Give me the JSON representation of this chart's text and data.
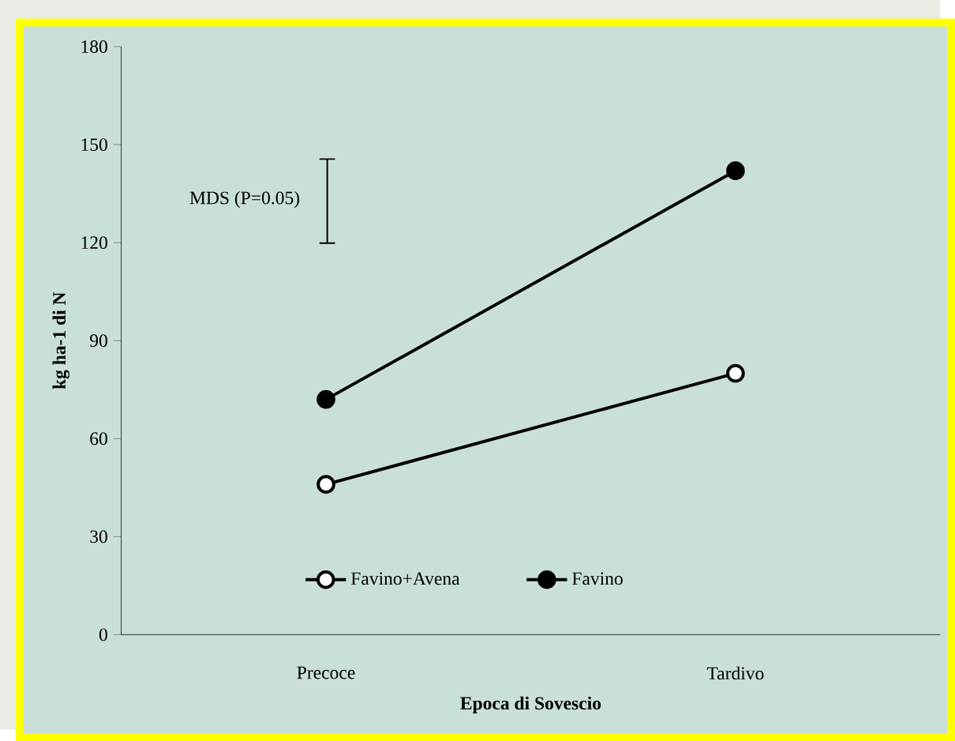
{
  "chart_data": {
    "type": "line",
    "xlabel": "Epoca di Sovescio",
    "ylabel": "kg ha-1 di N",
    "categories": [
      "Precoce",
      "Tardivo"
    ],
    "series": [
      {
        "name": "Favino+Avena",
        "color": "#ffffff",
        "values": [
          46,
          80
        ]
      },
      {
        "name": "Favino",
        "color": "#000000",
        "values": [
          72,
          142
        ]
      }
    ],
    "annotations": [
      "MDS (P=0.05)"
    ],
    "ylim": [
      0,
      180
    ],
    "yticks": [
      0,
      30,
      60,
      90,
      120,
      150,
      180
    ],
    "grid": false,
    "legend": "bottom",
    "marker": "circle",
    "line_style": "solid"
  }
}
